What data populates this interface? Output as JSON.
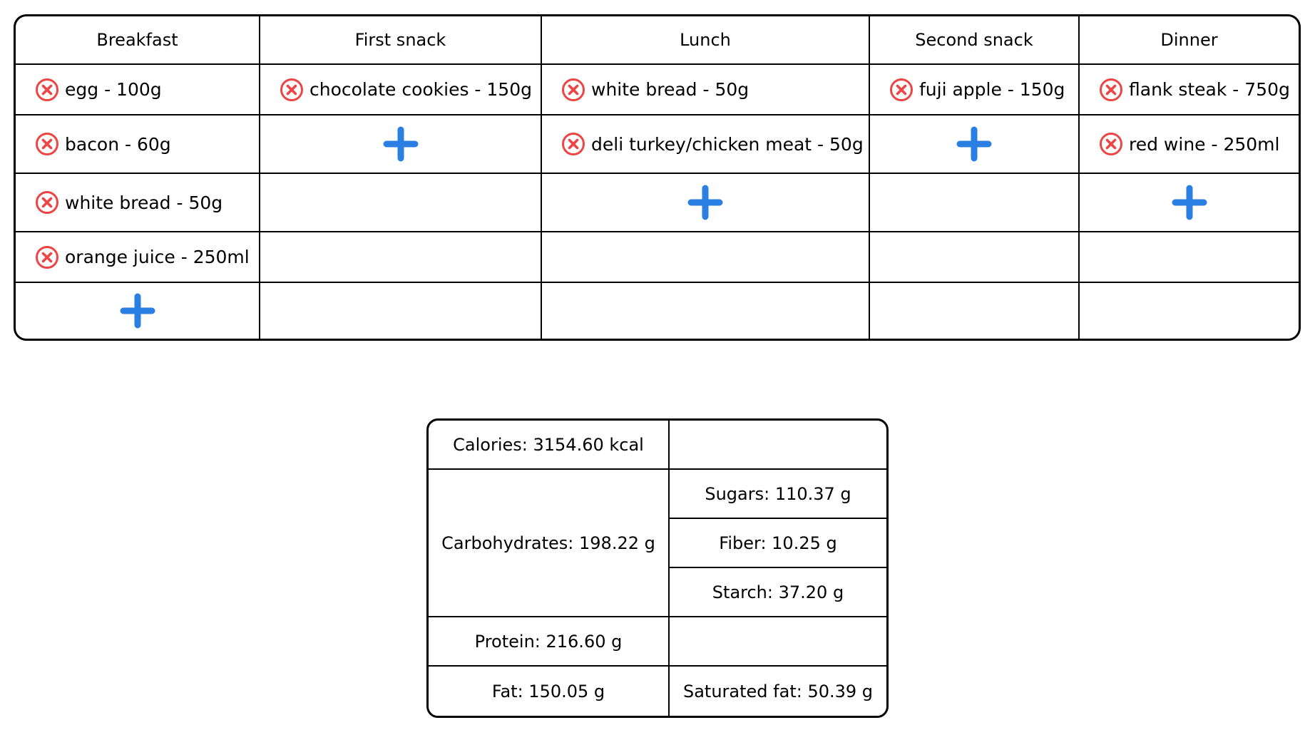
{
  "colors": {
    "remove_icon": "#ef4444",
    "add_icon": "#2b7fe3",
    "border": "#000000"
  },
  "icons": {
    "remove": "circle-x-icon",
    "add": "plus-icon"
  },
  "meals": {
    "headers": [
      "Breakfast",
      "First snack",
      "Lunch",
      "Second snack",
      "Dinner"
    ],
    "breakfast": [
      "egg - 100g",
      "bacon - 60g",
      "white bread - 50g",
      "orange juice - 250ml"
    ],
    "first_snack": [
      "chocolate cookies - 150g"
    ],
    "lunch": [
      "white bread - 50g",
      "deli turkey/chicken meat - 50g"
    ],
    "second_snack": [
      "fuji apple - 150g"
    ],
    "dinner": [
      "flank steak - 750g",
      "red wine - 250ml"
    ]
  },
  "nutrition": {
    "calories": "Calories: 3154.60 kcal",
    "carbohydrates": "Carbohydrates: 198.22 g",
    "sugars": "Sugars: 110.37 g",
    "fiber": "Fiber: 10.25 g",
    "starch": "Starch: 37.20 g",
    "protein": "Protein: 216.60 g",
    "fat": "Fat: 150.05 g",
    "saturated_fat": "Saturated fat: 50.39 g"
  }
}
